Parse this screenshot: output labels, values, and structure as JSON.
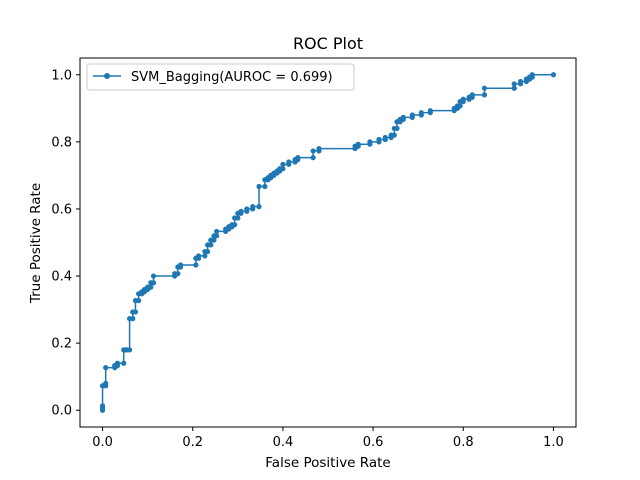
{
  "chart_data": {
    "type": "line",
    "title": "ROC Plot",
    "xlabel": "False Positive Rate",
    "ylabel": "True Positive Rate",
    "xlim": [
      -0.05,
      1.05
    ],
    "ylim": [
      -0.05,
      1.05
    ],
    "xticks": [
      0.0,
      0.2,
      0.4,
      0.6,
      0.8,
      1.0
    ],
    "yticks": [
      0.0,
      0.2,
      0.4,
      0.6,
      0.8,
      1.0
    ],
    "xtick_labels": [
      "0.0",
      "0.2",
      "0.4",
      "0.6",
      "0.8",
      "1.0"
    ],
    "ytick_labels": [
      "0.0",
      "0.2",
      "0.4",
      "0.6",
      "0.8",
      "1.0"
    ],
    "grid": false,
    "legend_position": "top-left",
    "color": "#1f77b4",
    "series": [
      {
        "name": "SVM_Bagging(AUROC = 0.699)",
        "x": [
          0.0,
          0.0,
          0.0,
          0.0,
          0.007,
          0.007,
          0.007,
          0.027,
          0.027,
          0.033,
          0.033,
          0.047,
          0.047,
          0.053,
          0.053,
          0.06,
          0.06,
          0.067,
          0.067,
          0.073,
          0.073,
          0.08,
          0.08,
          0.087,
          0.087,
          0.093,
          0.093,
          0.1,
          0.1,
          0.107,
          0.107,
          0.113,
          0.113,
          0.16,
          0.16,
          0.167,
          0.167,
          0.173,
          0.173,
          0.207,
          0.207,
          0.213,
          0.213,
          0.227,
          0.227,
          0.233,
          0.233,
          0.24,
          0.24,
          0.247,
          0.247,
          0.253,
          0.253,
          0.273,
          0.273,
          0.28,
          0.28,
          0.287,
          0.287,
          0.293,
          0.293,
          0.3,
          0.3,
          0.307,
          0.307,
          0.32,
          0.32,
          0.333,
          0.333,
          0.347,
          0.347,
          0.36,
          0.36,
          0.367,
          0.367,
          0.373,
          0.373,
          0.38,
          0.38,
          0.387,
          0.387,
          0.393,
          0.393,
          0.4,
          0.4,
          0.413,
          0.413,
          0.427,
          0.427,
          0.433,
          0.433,
          0.467,
          0.467,
          0.48,
          0.48,
          0.56,
          0.56,
          0.567,
          0.567,
          0.593,
          0.593,
          0.613,
          0.613,
          0.627,
          0.627,
          0.64,
          0.64,
          0.647,
          0.647,
          0.653,
          0.653,
          0.66,
          0.66,
          0.667,
          0.667,
          0.687,
          0.687,
          0.707,
          0.707,
          0.727,
          0.727,
          0.78,
          0.78,
          0.787,
          0.787,
          0.793,
          0.793,
          0.8,
          0.8,
          0.813,
          0.813,
          0.82,
          0.82,
          0.847,
          0.847,
          0.913,
          0.913,
          0.913,
          0.927,
          0.927,
          0.94,
          0.94,
          0.947,
          0.947,
          0.953,
          0.953,
          1.0
        ],
        "y": [
          0.0,
          0.007,
          0.013,
          0.073,
          0.073,
          0.08,
          0.127,
          0.127,
          0.133,
          0.133,
          0.14,
          0.14,
          0.18,
          0.18,
          0.18,
          0.18,
          0.273,
          0.273,
          0.293,
          0.293,
          0.327,
          0.327,
          0.347,
          0.347,
          0.353,
          0.353,
          0.36,
          0.36,
          0.367,
          0.367,
          0.38,
          0.38,
          0.4,
          0.4,
          0.407,
          0.407,
          0.427,
          0.427,
          0.433,
          0.433,
          0.453,
          0.453,
          0.46,
          0.46,
          0.473,
          0.473,
          0.493,
          0.493,
          0.507,
          0.507,
          0.52,
          0.52,
          0.533,
          0.533,
          0.54,
          0.54,
          0.547,
          0.547,
          0.553,
          0.553,
          0.573,
          0.573,
          0.587,
          0.587,
          0.593,
          0.593,
          0.6,
          0.6,
          0.607,
          0.607,
          0.667,
          0.667,
          0.687,
          0.687,
          0.693,
          0.693,
          0.7,
          0.7,
          0.707,
          0.707,
          0.713,
          0.713,
          0.72,
          0.72,
          0.733,
          0.733,
          0.74,
          0.74,
          0.747,
          0.747,
          0.753,
          0.753,
          0.773,
          0.773,
          0.78,
          0.78,
          0.787,
          0.787,
          0.793,
          0.793,
          0.8,
          0.8,
          0.807,
          0.807,
          0.813,
          0.813,
          0.82,
          0.82,
          0.84,
          0.84,
          0.86,
          0.86,
          0.867,
          0.867,
          0.873,
          0.873,
          0.88,
          0.88,
          0.887,
          0.887,
          0.893,
          0.893,
          0.9,
          0.9,
          0.907,
          0.907,
          0.92,
          0.92,
          0.927,
          0.927,
          0.933,
          0.933,
          0.94,
          0.94,
          0.96,
          0.96,
          0.96,
          0.973,
          0.973,
          0.98,
          0.98,
          0.987,
          0.987,
          0.993,
          0.993,
          1.0,
          1.0
        ]
      }
    ]
  }
}
